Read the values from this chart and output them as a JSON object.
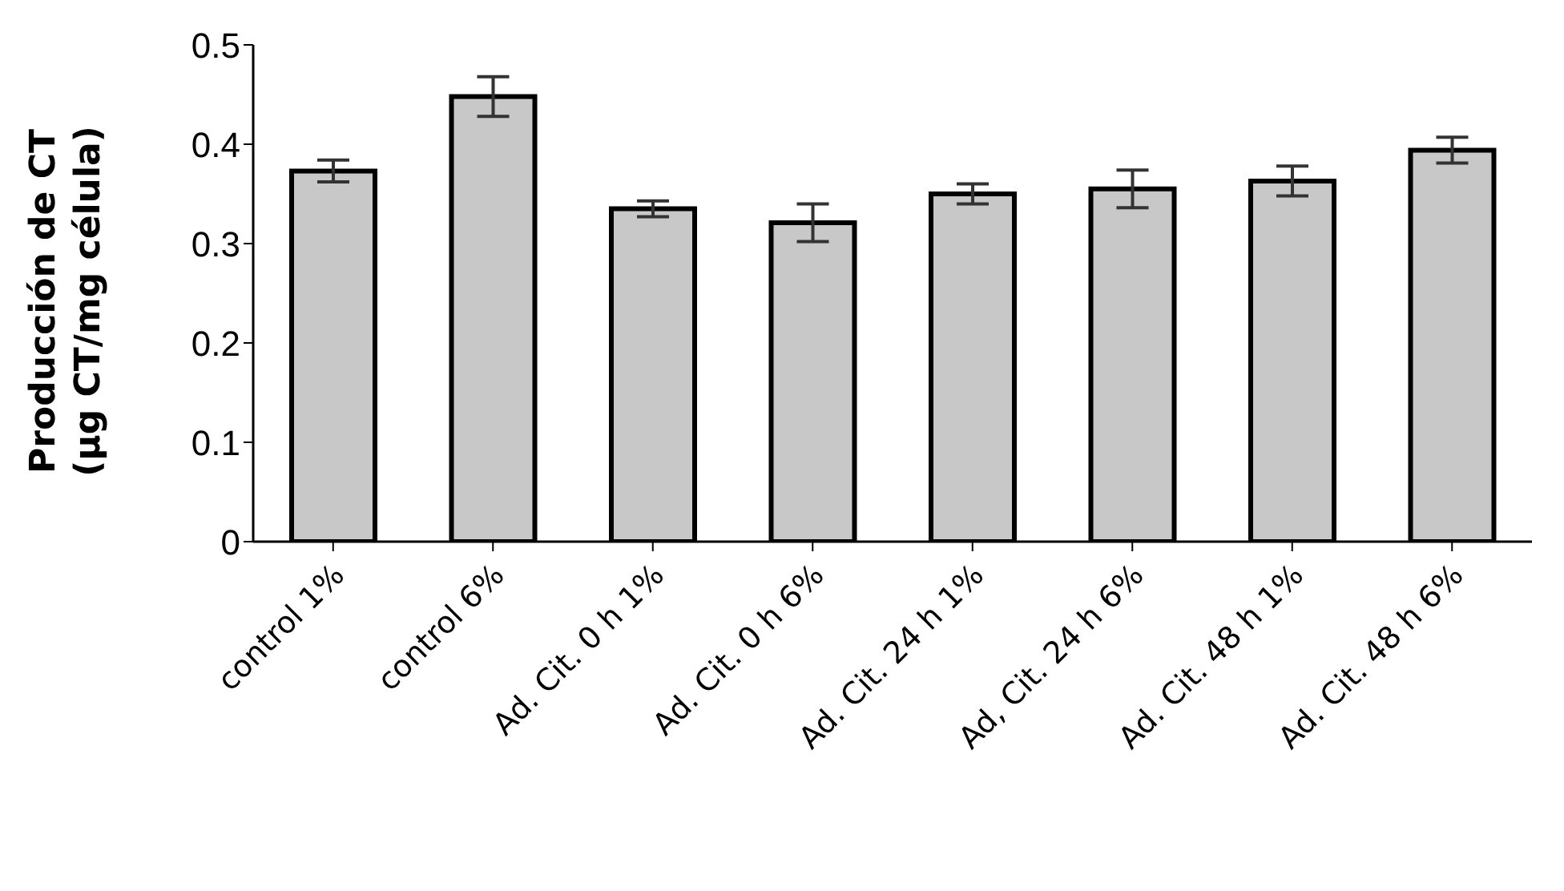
{
  "chart_data": {
    "type": "bar",
    "ylabel": "Producción de CT\n(µg CT/mg célula)",
    "categories": [
      "control 1%",
      "control 6%",
      "Ad. Cit. 0 h 1%",
      "Ad. Cit. 0 h 6%",
      "Ad. Cit. 24 h 1%",
      "Ad, Cit. 24 h 6%",
      "Ad. Cit. 48 h 1%",
      "Ad. Cit. 48 h 6%"
    ],
    "values": [
      0.373,
      0.448,
      0.335,
      0.321,
      0.35,
      0.355,
      0.363,
      0.394
    ],
    "errors": [
      0.011,
      0.02,
      0.008,
      0.019,
      0.01,
      0.019,
      0.015,
      0.013
    ],
    "color": "#c8c8c8",
    "ylim": [
      0,
      0.5
    ],
    "yticks": [
      0,
      0.1,
      0.2,
      0.3,
      0.4,
      0.5
    ],
    "grid": false
  }
}
